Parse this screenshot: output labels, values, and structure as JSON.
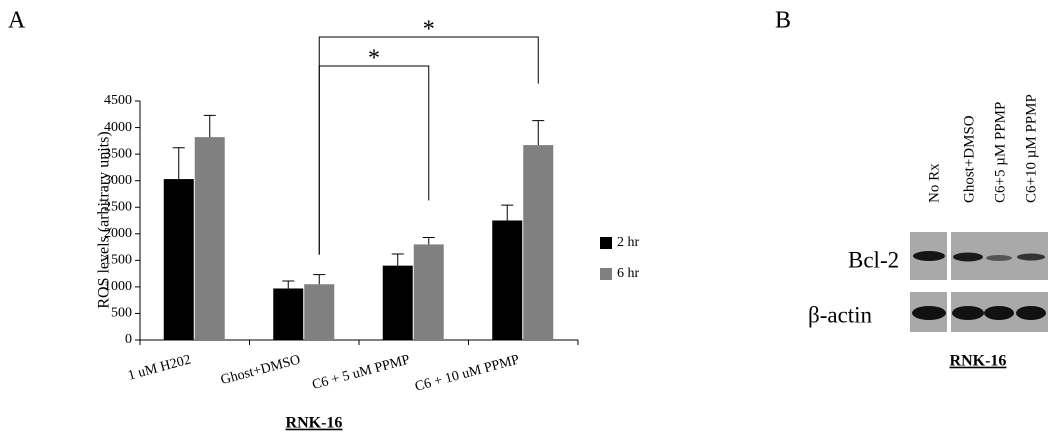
{
  "panel_a": {
    "label": "A"
  },
  "chart_data": {
    "type": "bar",
    "y_label": "ROS levels (arbitrary units)",
    "x_label": "RNK-16",
    "categories": [
      "1 uM H202",
      "Ghost+DMSO",
      "C6 + 5 uM PPMP",
      "C6 + 10 uM PPMP"
    ],
    "series": [
      {
        "name": "2 hr",
        "color": "#000000",
        "values": [
          3030,
          970,
          1400,
          2250
        ],
        "errors": [
          590,
          140,
          220,
          290
        ]
      },
      {
        "name": "6 hr",
        "color": "#808080",
        "values": [
          3820,
          1050,
          1800,
          3670
        ],
        "errors": [
          410,
          180,
          130,
          460
        ]
      }
    ],
    "ylim": [
      0,
      4500
    ],
    "yticks": [
      0,
      500,
      1000,
      1500,
      2000,
      2500,
      3000,
      3500,
      4000,
      4500
    ],
    "annotations": [
      "*",
      "*"
    ]
  },
  "panel_b": {
    "label": "B",
    "lanes": [
      "No Rx",
      "Ghost+DMSO",
      "C6+5 µM PPMP",
      "C6+10 µM PPMP"
    ],
    "rows": [
      "Bcl-2",
      "β-actin"
    ],
    "caption": "RNK-16"
  }
}
